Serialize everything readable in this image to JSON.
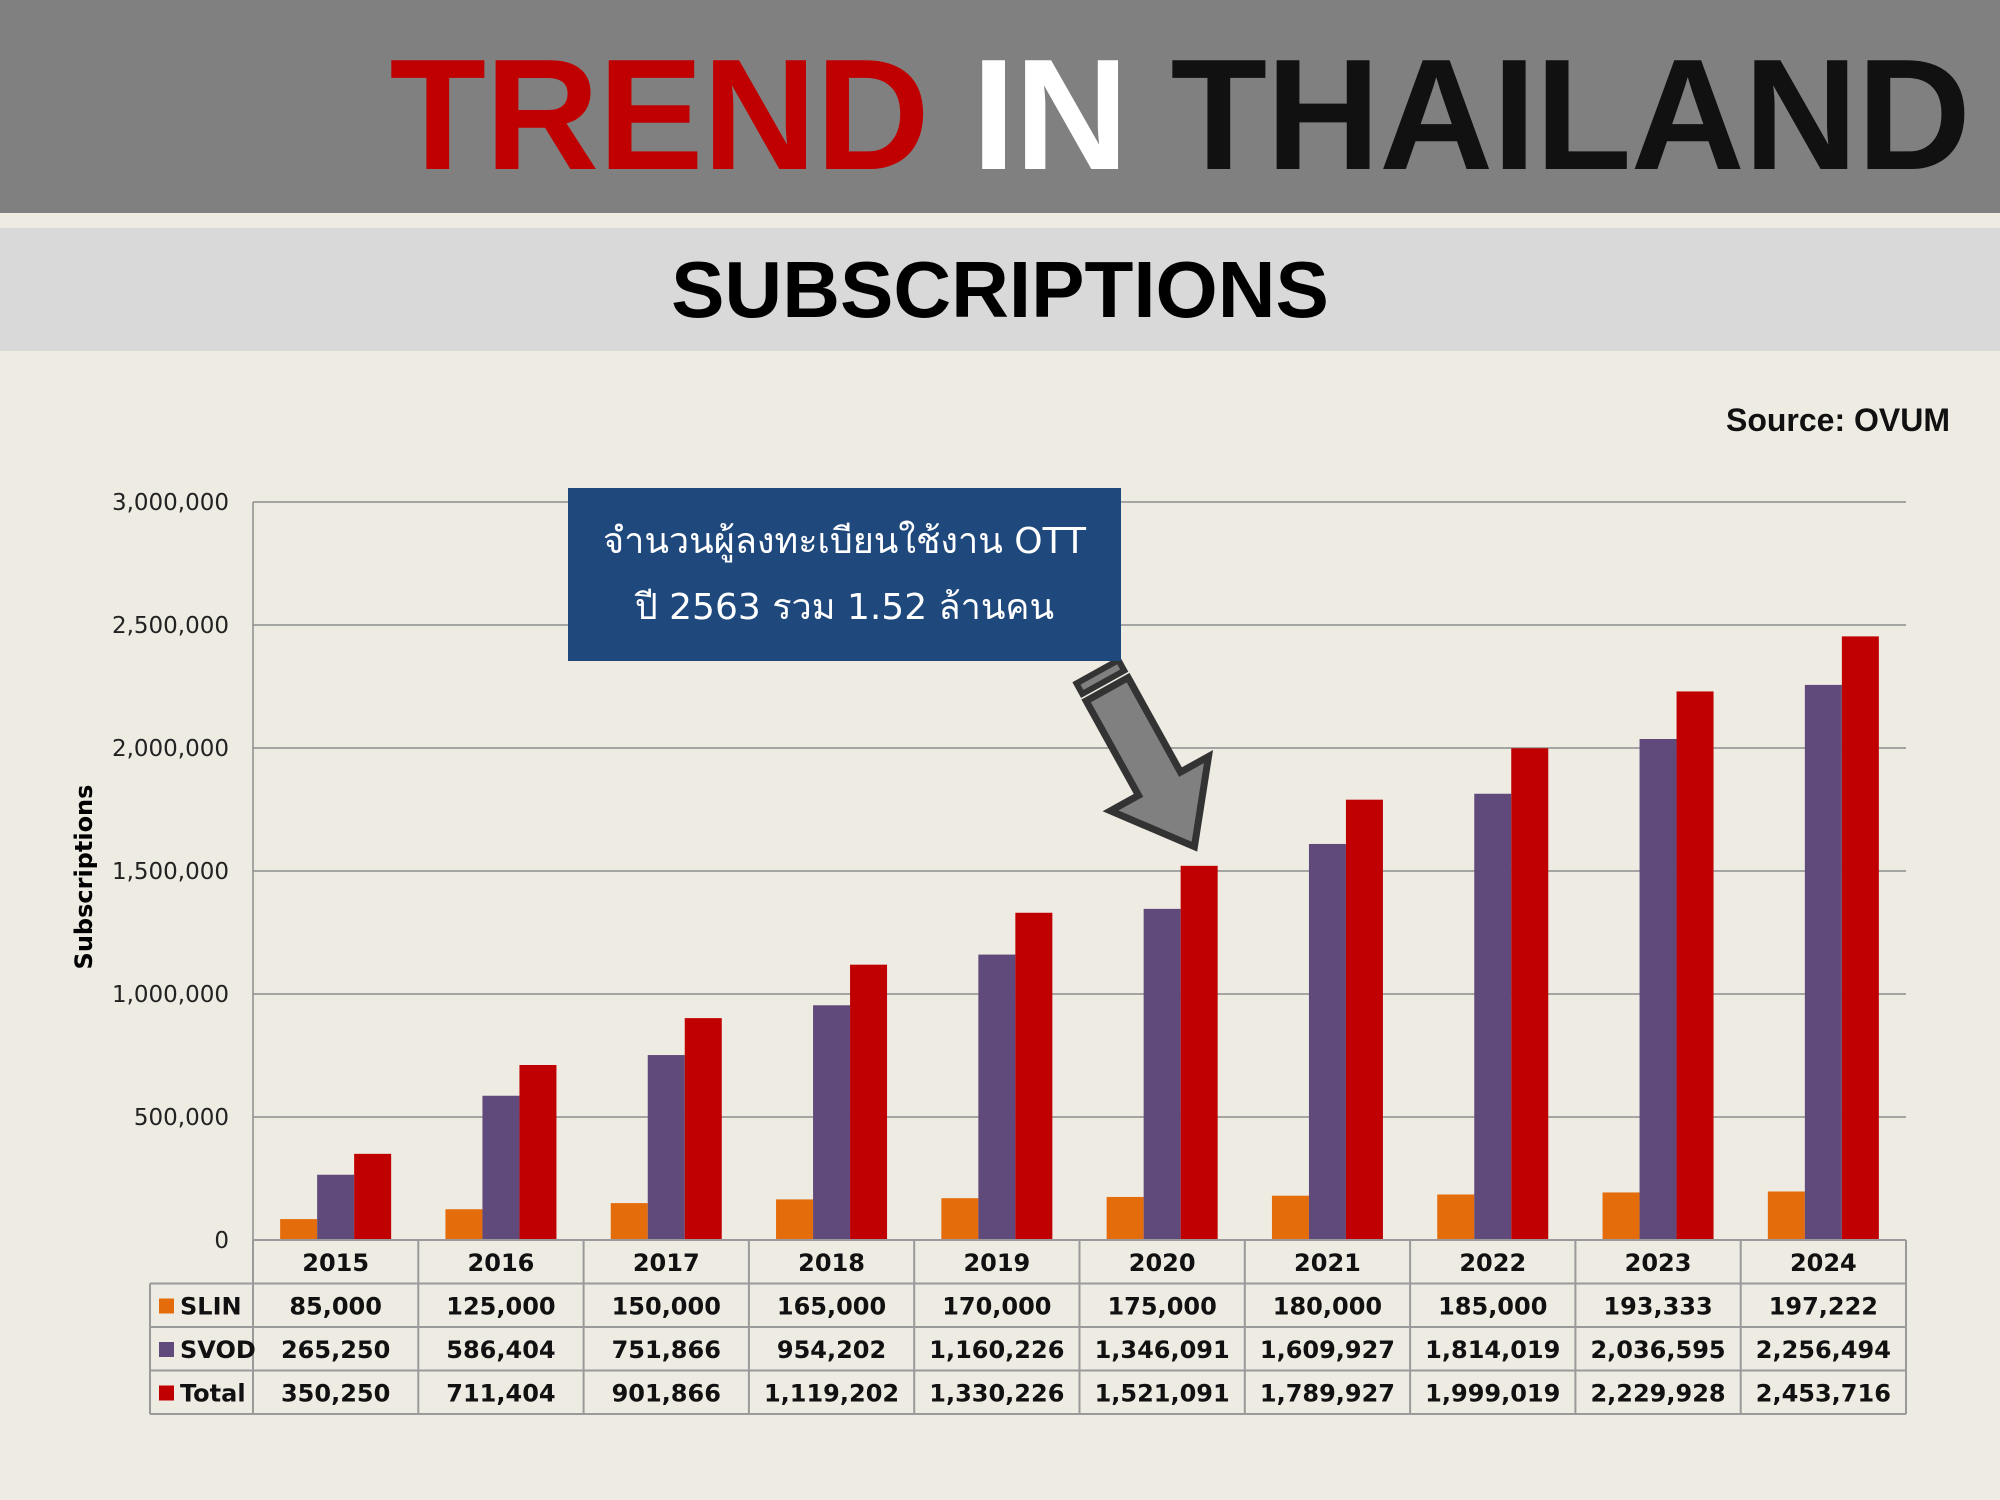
{
  "header": {
    "title_part1": "TREND",
    "title_part2": "IN",
    "title_part3": "THAILAND",
    "subtitle": "SUBSCRIPTIONS"
  },
  "source": "Source: OVUM",
  "callout": {
    "line1": "จำนวนผู้ลงทะเบียนใช้งาน OTT",
    "line2": "ปี 2563 รวม 1.52 ล้านคน",
    "arrow_icon": "down-right-arrow-icon"
  },
  "colors": {
    "SLIN": "#e46c0a",
    "SVOD": "#604a7b",
    "Total": "#c00000",
    "callout_bg": "#1f497d",
    "title_red": "#c00000"
  },
  "chart_data": {
    "type": "bar",
    "ylabel": "Subscriptions",
    "xlabel": "",
    "ylim": [
      0,
      3000000
    ],
    "yticks": [
      0,
      500000,
      1000000,
      1500000,
      2000000,
      2500000,
      3000000
    ],
    "ytick_labels": [
      "0",
      "500,000",
      "1,000,000",
      "1,500,000",
      "2,000,000",
      "2,500,000",
      "3,000,000"
    ],
    "grid": true,
    "categories": [
      "2015",
      "2016",
      "2017",
      "2018",
      "2019",
      "2020",
      "2021",
      "2022",
      "2023",
      "2024"
    ],
    "series": [
      {
        "name": "SLIN",
        "values": [
          85000,
          125000,
          150000,
          165000,
          170000,
          175000,
          180000,
          185000,
          193333,
          197222
        ],
        "labels": [
          "85,000",
          "125,000",
          "150,000",
          "165,000",
          "170,000",
          "175,000",
          "180,000",
          "185,000",
          "193,333",
          "197,222"
        ]
      },
      {
        "name": "SVOD",
        "values": [
          265250,
          586404,
          751866,
          954202,
          1160226,
          1346091,
          1609927,
          1814019,
          2036595,
          2256494
        ],
        "labels": [
          "265,250",
          "586,404",
          "751,866",
          "954,202",
          "1,160,226",
          "1,346,091",
          "1,609,927",
          "1,814,019",
          "2,036,595",
          "2,256,494"
        ]
      },
      {
        "name": "Total",
        "values": [
          350250,
          711404,
          901866,
          1119202,
          1330226,
          1521091,
          1789927,
          1999019,
          2229928,
          2453716
        ],
        "labels": [
          "350,250",
          "711,404",
          "901,866",
          "1,119,202",
          "1,330,226",
          "1,521,091",
          "1,789,927",
          "1,999,019",
          "2,229,928",
          "2,453,716"
        ]
      }
    ],
    "data_table": true
  }
}
